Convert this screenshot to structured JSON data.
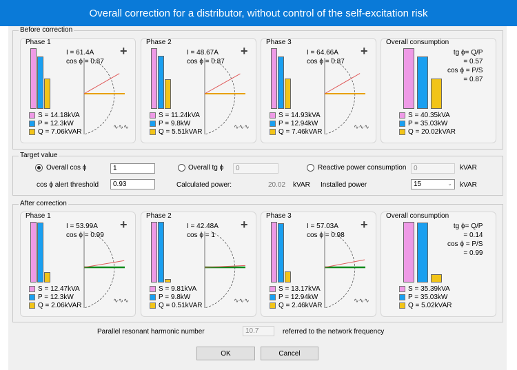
{
  "window": {
    "title": "Overall correction for a distributor, without control of the self-excitation risk"
  },
  "colors": {
    "S": "#ee9ae6",
    "P": "#1a9ff0",
    "Q": "#f2c418",
    "before_line": "#e8a000",
    "after_line": "#0c8a1c",
    "red_line": "#e05a5a"
  },
  "before": {
    "title": "Before correction",
    "phases": [
      {
        "title": "Phase 1",
        "I": "I = 61.4A",
        "cos": "cos ϕ = 0.87",
        "S_label": "S = 14.18kVA",
        "P_label": "P = 12.3kW",
        "Q_label": "Q = 7.06kVAR",
        "S": 14.18,
        "P": 12.3,
        "Q": 7.06
      },
      {
        "title": "Phase 2",
        "I": "I = 48.67A",
        "cos": "cos ϕ = 0.87",
        "S_label": "S = 11.24kVA",
        "P_label": "P = 9.8kW",
        "Q_label": "Q = 5.51kVAR",
        "S": 11.24,
        "P": 9.8,
        "Q": 5.51
      },
      {
        "title": "Phase 3",
        "I": "I = 64.66A",
        "cos": "cos ϕ = 0.87",
        "S_label": "S = 14.93kVA",
        "P_label": "P = 12.94kW",
        "Q_label": "Q = 7.46kVAR",
        "S": 14.93,
        "P": 12.94,
        "Q": 7.46
      }
    ],
    "overall": {
      "title": "Overall consumption",
      "tg_label": "tg ϕ= Q/P",
      "tg_value": "= 0.57",
      "cos_label": "cos ϕ = P/S",
      "cos_value": "= 0.87",
      "S_label": "S = 40.35kVA",
      "P_label": "P = 35.03kW",
      "Q_label": "Q = 20.02kVAR",
      "S": 40.35,
      "P": 35.03,
      "Q": 20.02
    }
  },
  "target": {
    "title": "Target value",
    "overall_cos_label": "Overall cos ϕ",
    "overall_cos_value": "1",
    "overall_tg_label": "Overall tg ϕ",
    "overall_tg_value": "0",
    "reactive_label": "Reactive power consumption",
    "reactive_value": "0",
    "reactive_unit": "kVAR",
    "alert_label": "cos ϕ alert threshold",
    "alert_value": "0.93",
    "calc_label": "Calculated power:",
    "calc_value": "20.02",
    "calc_unit": "kVAR",
    "installed_label": "Installed power",
    "installed_value": "15",
    "installed_unit": "kVAR"
  },
  "after": {
    "title": "After correction",
    "phases": [
      {
        "title": "Phase 1",
        "I": "I = 53.99A",
        "cos": "cos ϕ = 0.99",
        "S_label": "S = 12.47kVA",
        "P_label": "P = 12.3kW",
        "Q_label": "Q = 2.06kVAR",
        "S": 12.47,
        "P": 12.3,
        "Q": 2.06
      },
      {
        "title": "Phase 2",
        "I": "I = 42.48A",
        "cos": "cos ϕ = 1",
        "S_label": "S = 9.81kVA",
        "P_label": "P = 9.8kW",
        "Q_label": "Q = 0.51kVAR",
        "S": 9.81,
        "P": 9.8,
        "Q": 0.51
      },
      {
        "title": "Phase 3",
        "I": "I = 57.03A",
        "cos": "cos ϕ = 0.98",
        "S_label": "S = 13.17kVA",
        "P_label": "P = 12.94kW",
        "Q_label": "Q = 2.46kVAR",
        "S": 13.17,
        "P": 12.94,
        "Q": 2.46
      }
    ],
    "overall": {
      "title": "Overall consumption",
      "tg_label": "tg ϕ= Q/P",
      "tg_value": "= 0.14",
      "cos_label": "cos ϕ = P/S",
      "cos_value": "= 0.99",
      "S_label": "S = 35.39kVA",
      "P_label": "P = 35.03kW",
      "Q_label": "Q = 5.02kVAR",
      "S": 35.39,
      "P": 35.03,
      "Q": 5.02
    }
  },
  "resonance": {
    "label": "Parallel resonant harmonic number",
    "value": "10.7",
    "suffix": "referred to the network frequency"
  },
  "buttons": {
    "ok": "OK",
    "cancel": "Cancel"
  }
}
